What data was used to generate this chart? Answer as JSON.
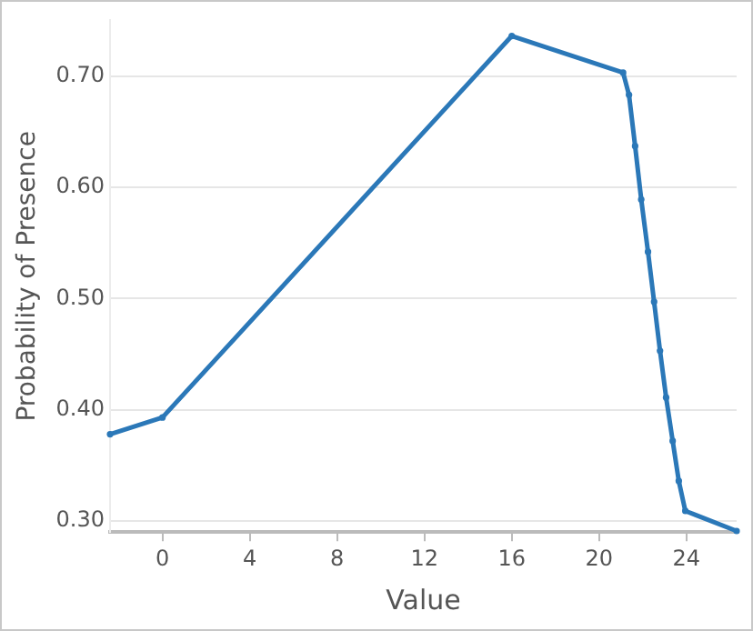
{
  "chart_data": {
    "type": "line",
    "xlabel": "Value",
    "ylabel": "Probability of Presence",
    "x": [
      -2.4,
      0,
      16,
      21.1,
      21.37,
      21.65,
      21.93,
      22.24,
      22.52,
      22.79,
      23.07,
      23.37,
      23.65,
      23.95,
      26.3
    ],
    "series": [
      {
        "color": "#2b78b8",
        "values": [
          0.378,
          0.393,
          0.736,
          0.703,
          0.683,
          0.637,
          0.589,
          0.542,
          0.497,
          0.453,
          0.411,
          0.372,
          0.336,
          0.309,
          0.291
        ]
      }
    ],
    "xlim": [
      -2.4,
      26.3
    ],
    "ylim": [
      0.29,
      0.75
    ],
    "xticks": [
      0,
      4,
      8,
      12,
      16,
      20,
      24
    ],
    "yticks": [
      {
        "value": 0.3,
        "label": "0.30"
      },
      {
        "value": 0.4,
        "label": "0.40"
      },
      {
        "value": 0.5,
        "label": "0.50"
      },
      {
        "value": 0.6,
        "label": "0.60"
      },
      {
        "value": 0.7,
        "label": "0.70"
      }
    ],
    "grid": "y",
    "legend": false,
    "marker": "circle",
    "line_style": "solid"
  }
}
